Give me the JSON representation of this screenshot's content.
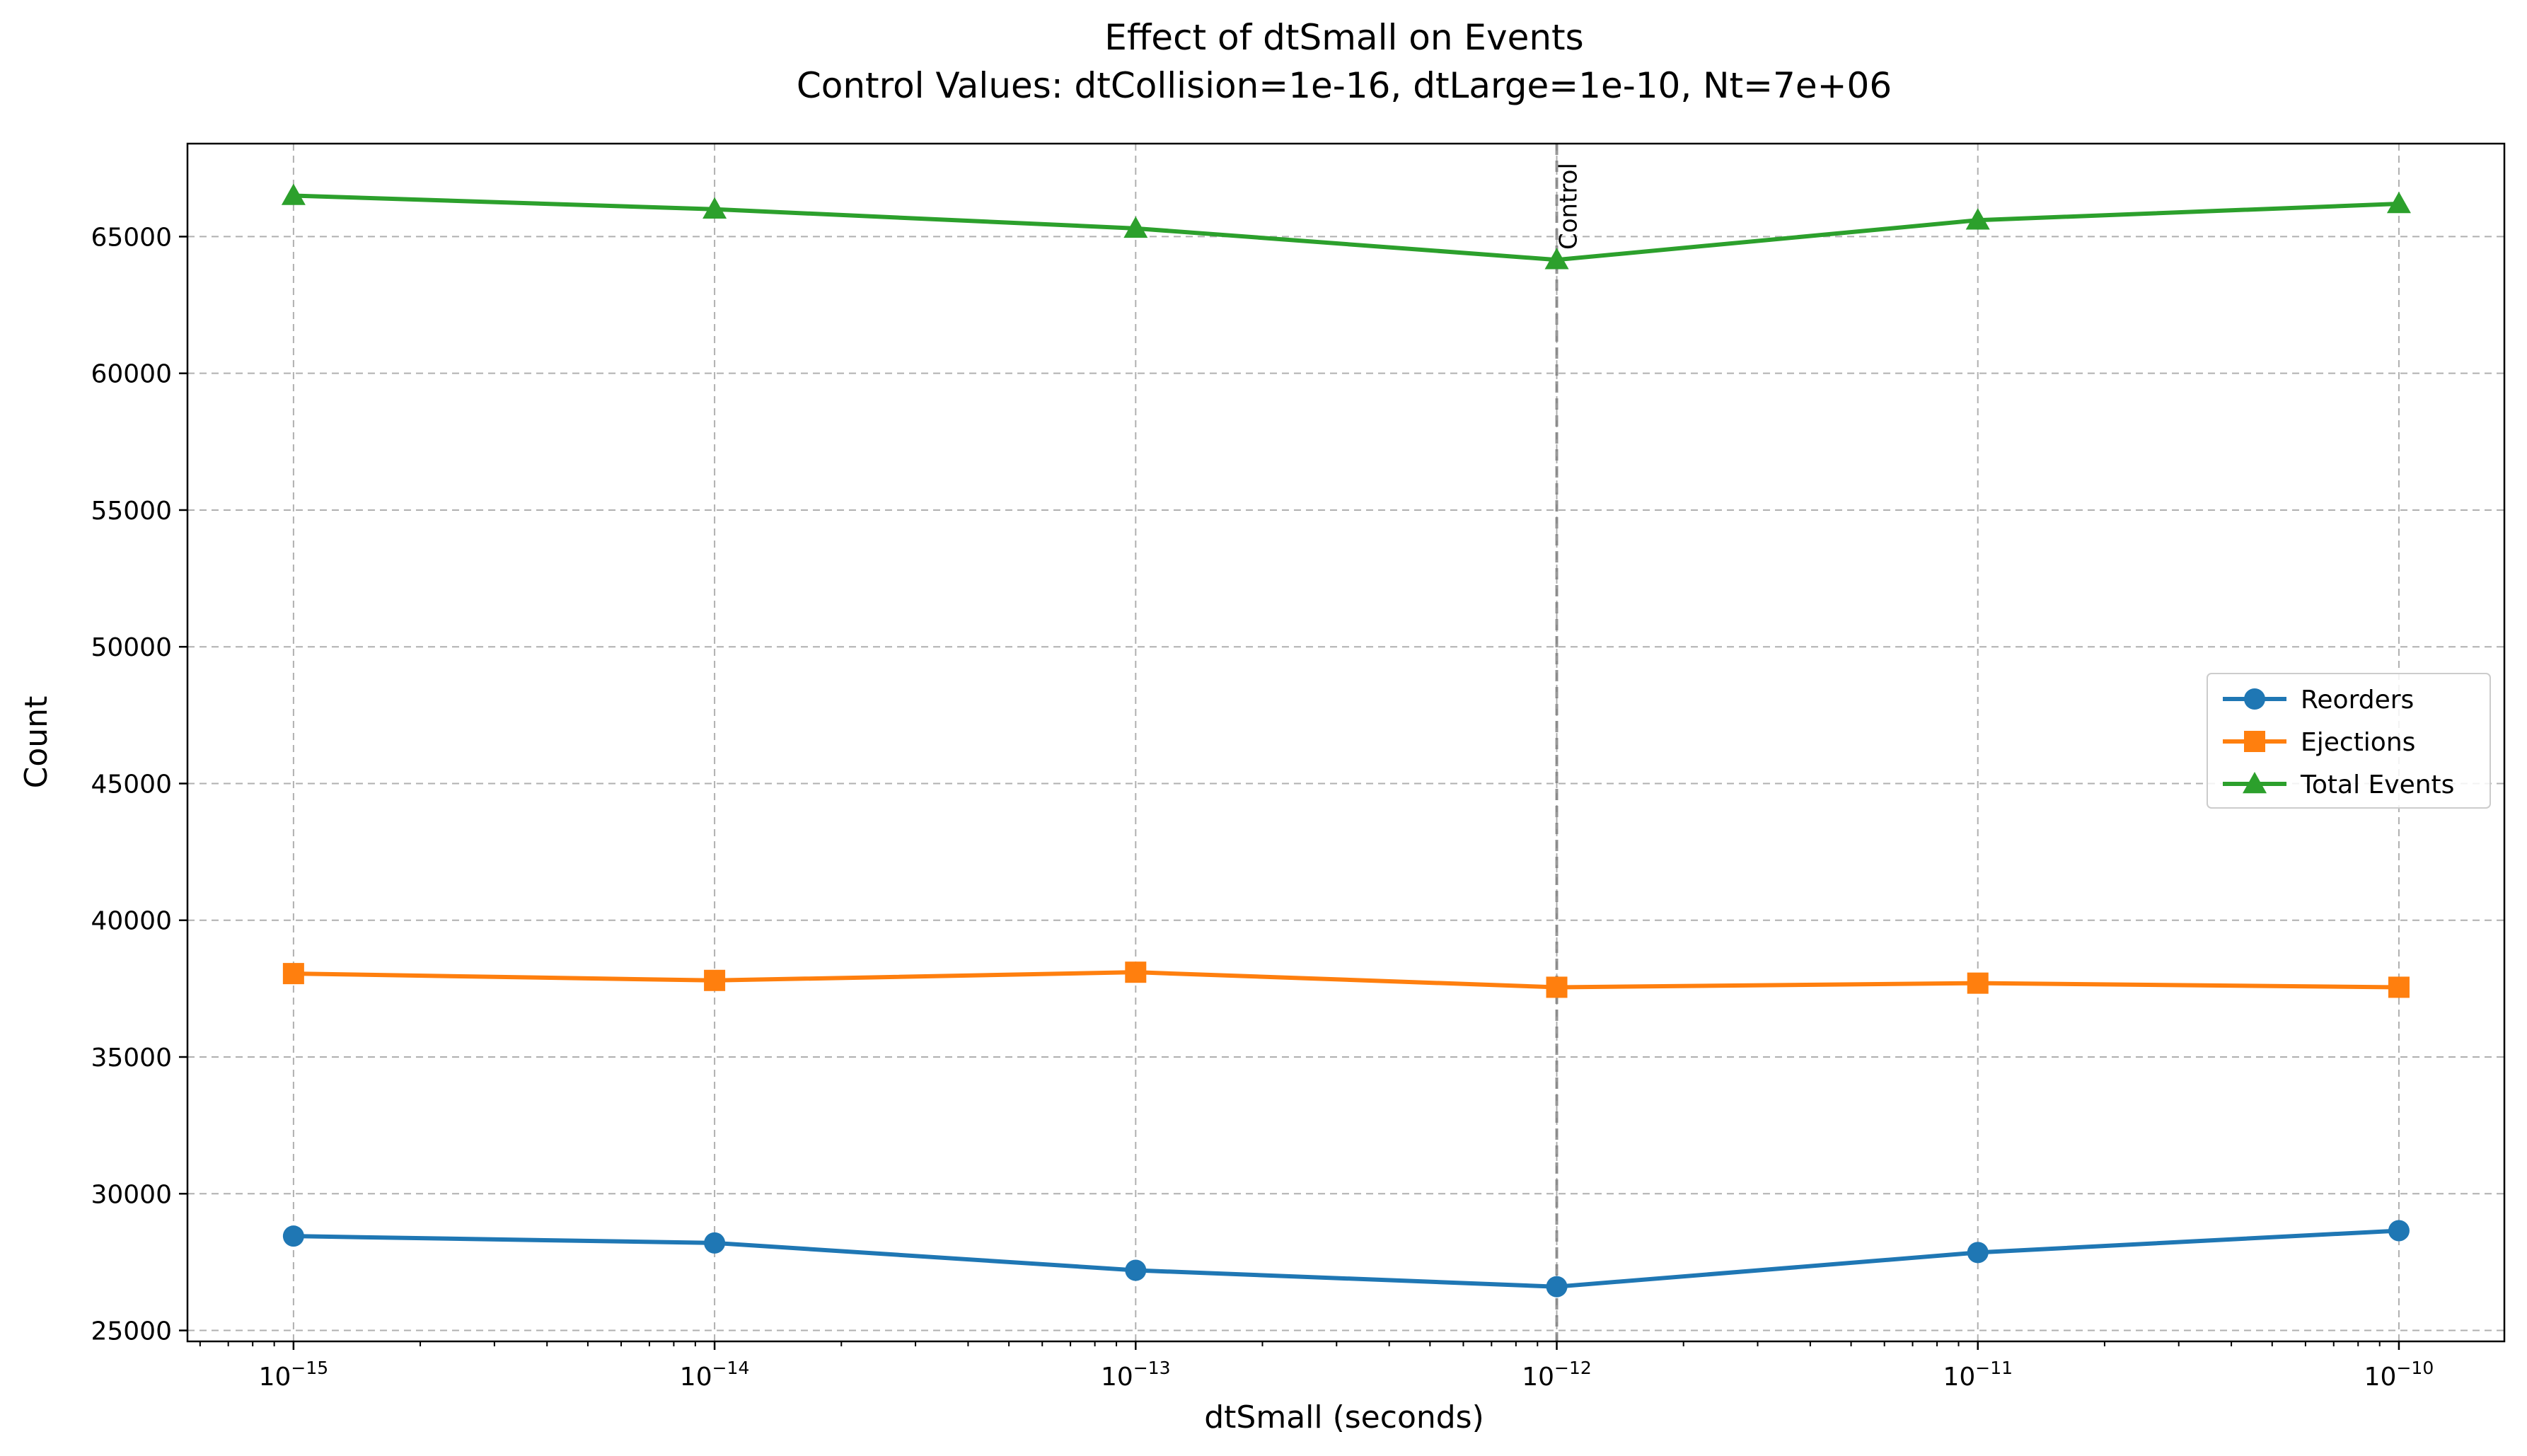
{
  "chart_data": {
    "type": "line",
    "title": "Effect of dtSmall on Events",
    "subtitle": "Control Values: dtCollision=1e-16, dtLarge=1e-10, Nt=7e+06",
    "xlabel": "dtSmall (seconds)",
    "ylabel": "Count",
    "xscale": "log",
    "x": [
      1e-15,
      1e-14,
      1e-13,
      1e-12,
      1e-11,
      1e-10
    ],
    "x_tick_labels": [
      {
        "base": "10",
        "exp": "−15"
      },
      {
        "base": "10",
        "exp": "−14"
      },
      {
        "base": "10",
        "exp": "−13"
      },
      {
        "base": "10",
        "exp": "−12"
      },
      {
        "base": "10",
        "exp": "−11"
      },
      {
        "base": "10",
        "exp": "−10"
      }
    ],
    "y_ticks": [
      25000,
      30000,
      35000,
      40000,
      45000,
      50000,
      55000,
      60000,
      65000
    ],
    "y_tick_labels": [
      "25000",
      "30000",
      "35000",
      "40000",
      "45000",
      "50000",
      "55000",
      "60000",
      "65000"
    ],
    "xlim": [
      5.6e-16,
      1.78e-10
    ],
    "ylim": [
      24600,
      68400
    ],
    "grid": true,
    "legend_position": "center-right",
    "series": [
      {
        "name": "Reorders",
        "color": "#1f77b4",
        "marker": "circle",
        "values": [
          28450,
          28200,
          27200,
          26600,
          27850,
          28650
        ]
      },
      {
        "name": "Ejections",
        "color": "#ff7f0e",
        "marker": "square",
        "values": [
          38050,
          37800,
          38100,
          37550,
          37700,
          37550
        ]
      },
      {
        "name": "Total Events",
        "color": "#2ca02c",
        "marker": "triangle",
        "values": [
          66500,
          66000,
          65300,
          64150,
          65600,
          66200
        ]
      }
    ],
    "annotation": {
      "text": "Control",
      "x": 1e-12
    }
  }
}
